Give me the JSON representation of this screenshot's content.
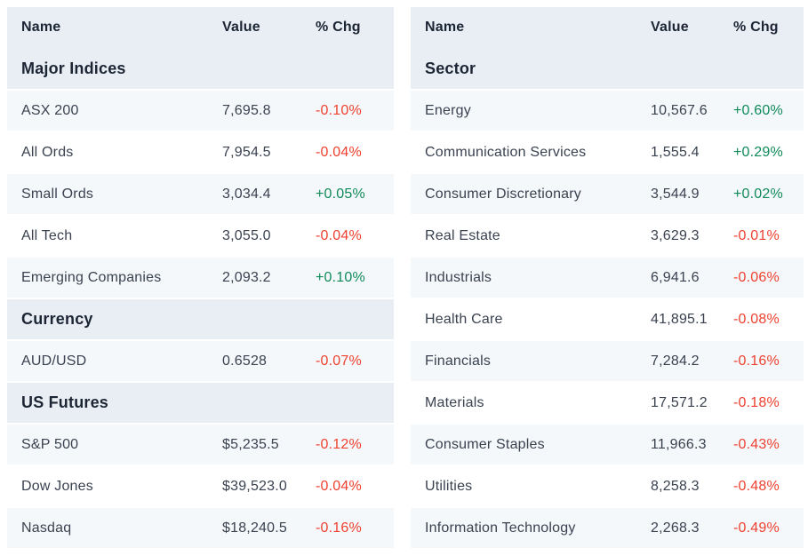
{
  "colors": {
    "positive": "#0e8a58",
    "negative": "#ee4130",
    "header_bg": "#e9eef5",
    "stripe_bg": "#f5f8fb",
    "heading_text": "#1c2534",
    "row_text": "#3a4250"
  },
  "chart_data": [
    {
      "type": "table",
      "columns": [
        "Name",
        "Value",
        "% Chg"
      ],
      "sections": [
        {
          "title": "Major Indices",
          "rows": [
            {
              "name": "ASX 200",
              "value": "7,695.8",
              "chg": "-0.10%"
            },
            {
              "name": "All Ords",
              "value": "7,954.5",
              "chg": "-0.04%"
            },
            {
              "name": "Small Ords",
              "value": "3,034.4",
              "chg": "+0.05%"
            },
            {
              "name": "All Tech",
              "value": "3,055.0",
              "chg": "-0.04%"
            },
            {
              "name": "Emerging Companies",
              "value": "2,093.2",
              "chg": "+0.10%"
            }
          ]
        },
        {
          "title": "Currency",
          "rows": [
            {
              "name": "AUD/USD",
              "value": "0.6528",
              "chg": "-0.07%"
            }
          ]
        },
        {
          "title": "US Futures",
          "rows": [
            {
              "name": "S&P 500",
              "value": "$5,235.5",
              "chg": "-0.12%"
            },
            {
              "name": "Dow Jones",
              "value": "$39,523.0",
              "chg": "-0.04%"
            },
            {
              "name": "Nasdaq",
              "value": "$18,240.5",
              "chg": "-0.16%"
            }
          ]
        }
      ]
    },
    {
      "type": "table",
      "columns": [
        "Name",
        "Value",
        "% Chg"
      ],
      "sections": [
        {
          "title": "Sector",
          "rows": [
            {
              "name": "Energy",
              "value": "10,567.6",
              "chg": "+0.60%"
            },
            {
              "name": "Communication Services",
              "value": "1,555.4",
              "chg": "+0.29%"
            },
            {
              "name": "Consumer Discretionary",
              "value": "3,544.9",
              "chg": "+0.02%"
            },
            {
              "name": "Real Estate",
              "value": "3,629.3",
              "chg": "-0.01%"
            },
            {
              "name": "Industrials",
              "value": "6,941.6",
              "chg": "-0.06%"
            },
            {
              "name": "Health Care",
              "value": "41,895.1",
              "chg": "-0.08%"
            },
            {
              "name": "Financials",
              "value": "7,284.2",
              "chg": "-0.16%"
            },
            {
              "name": "Materials",
              "value": "17,571.2",
              "chg": "-0.18%"
            },
            {
              "name": "Consumer Staples",
              "value": "11,966.3",
              "chg": "-0.43%"
            },
            {
              "name": "Utilities",
              "value": "8,258.3",
              "chg": "-0.48%"
            },
            {
              "name": "Information Technology",
              "value": "2,268.3",
              "chg": "-0.49%"
            }
          ]
        }
      ]
    }
  ]
}
